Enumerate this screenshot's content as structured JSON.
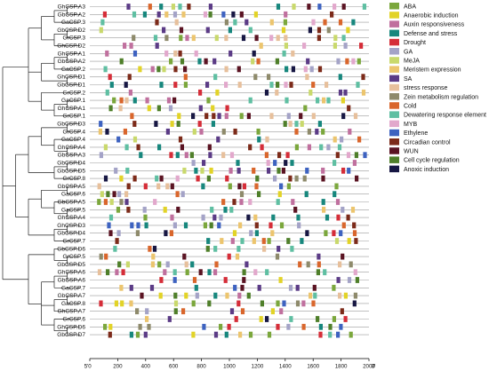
{
  "figure": {
    "genes": [
      "GhCSP.A3",
      "GbCSP.A2",
      "GaCSP.3",
      "GbCSP.D2",
      "GrCSP.3",
      "GhCSP.D2",
      "GhCSP.A1",
      "GbCSP.A2",
      "GaCSP.2",
      "GhCSP.D1",
      "GbCSP.D1",
      "GrCSP.2",
      "GaCSP.1",
      "GhCSP.A1",
      "GrCSP.1",
      "GbCSP.D3",
      "GrCSP.4",
      "GaCSP.4",
      "GhCSP.A4",
      "GbCSP.A3",
      "GbCSP.D4",
      "GbCSP.D5",
      "GrCSP.8",
      "GbCSP.A5",
      "GaCSP.6",
      "GbCSP.A5",
      "GaCSP.5",
      "GhCSP.A4",
      "GhCSP.D3",
      "GbCSP.D4",
      "GrCSP.7",
      "GbCSP.D6",
      "GrCSP.5",
      "GbCSP.D5",
      "GhCSP.A6",
      "GbCSP.A6",
      "GaCSP.7",
      "GbCSP.A7",
      "GaCSP.8",
      "GhCSP.A7",
      "GrCSP.6",
      "GhCSP.D6",
      "GbCSP.D7"
    ],
    "axis": {
      "ticks": [
        "0",
        "200",
        "400",
        "600",
        "800",
        "1000",
        "1200",
        "1400",
        "1600",
        "1800",
        "2000"
      ],
      "left_label": "5'",
      "right_label": "3'"
    },
    "legend": [
      {
        "label": "ABA",
        "color": "#7ba73c"
      },
      {
        "label": "Anaerobic induction",
        "color": "#e2d327"
      },
      {
        "label": "Auxin responsiveness",
        "color": "#c0709e"
      },
      {
        "label": "Defense and stress",
        "color": "#17877d"
      },
      {
        "label": "Drought",
        "color": "#d52d38"
      },
      {
        "label": "GA",
        "color": "#a4a3c7"
      },
      {
        "label": "MeJA",
        "color": "#c9d96c"
      },
      {
        "label": "Meristem expression",
        "color": "#ecc56e"
      },
      {
        "label": "SA",
        "color": "#5b3b86"
      },
      {
        "label": "stress response",
        "color": "#e7c09c"
      },
      {
        "label": "Zein metabolism regulation",
        "color": "#8e8a6b"
      },
      {
        "label": "Cold",
        "color": "#d9662c"
      },
      {
        "label": "Dewatering response element",
        "color": "#5fbfa2"
      },
      {
        "label": "MYB",
        "color": "#e2a8cc"
      },
      {
        "label": "Ethylene",
        "color": "#3d62c0"
      },
      {
        "label": "Circadian control",
        "color": "#7c2a19"
      },
      {
        "label": "WUN",
        "color": "#5a1322"
      },
      {
        "label": "Cell cycle regulation",
        "color": "#4f7f2a"
      },
      {
        "label": "Anoxic induction",
        "color": "#171743"
      }
    ]
  }
}
